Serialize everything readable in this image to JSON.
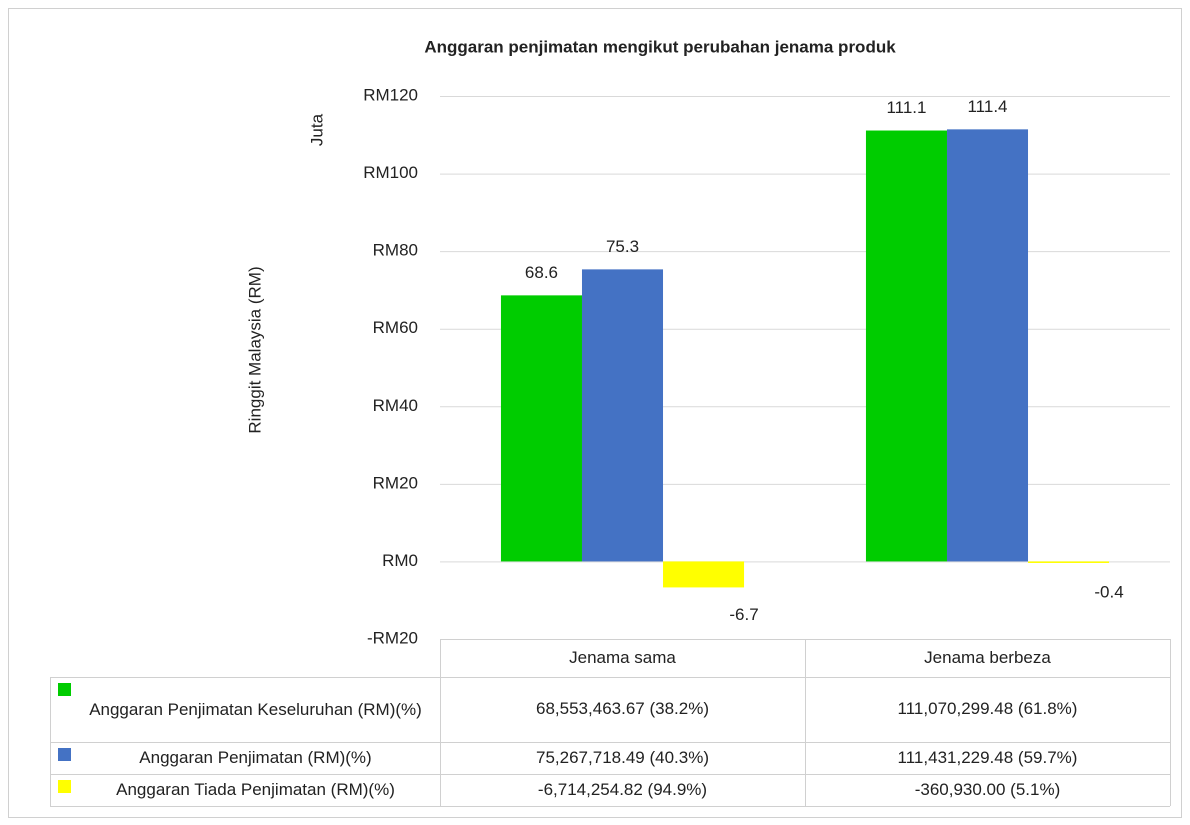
{
  "chart_data": {
    "type": "bar",
    "title": "Anggaran penjimatan mengikut perubahan jenama produk",
    "y_label": "Ringgit Malaysia (RM)",
    "y_unit_label": "Juta",
    "categories": [
      "Jenama sama",
      "Jenama berbeza"
    ],
    "series": [
      {
        "name": "Anggaran Penjimatan Keseluruhan (RM)(%)",
        "color": "#00cc00",
        "values": [
          68.6,
          111.1
        ],
        "table_values": [
          "68,553,463.67 (38.2%)",
          "111,070,299.48 (61.8%)"
        ]
      },
      {
        "name": "Anggaran Penjimatan (RM)(%)",
        "color": "#4472c4",
        "values": [
          75.3,
          111.4
        ],
        "table_values": [
          "75,267,718.49 (40.3%)",
          "111,431,229.48 (59.7%)"
        ]
      },
      {
        "name": "Anggaran Tiada Penjimatan (RM)(%)",
        "color": "#ffff00",
        "values": [
          -6.7,
          -0.4
        ],
        "table_values": [
          "-6,714,254.82 (94.9%)",
          "-360,930.00 (5.1%)"
        ]
      }
    ],
    "ylim": [
      -20,
      120
    ],
    "yticks": [
      {
        "value": -20,
        "label": "-RM20"
      },
      {
        "value": 0,
        "label": "RM0"
      },
      {
        "value": 20,
        "label": "RM20"
      },
      {
        "value": 40,
        "label": "RM40"
      },
      {
        "value": 60,
        "label": "RM60"
      },
      {
        "value": 80,
        "label": "RM80"
      },
      {
        "value": 100,
        "label": "RM100"
      },
      {
        "value": 120,
        "label": "RM120"
      }
    ],
    "grid": true
  }
}
